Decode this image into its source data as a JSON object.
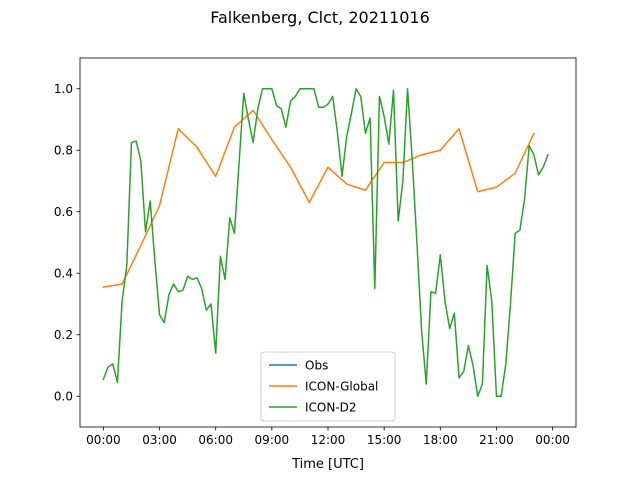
{
  "chart_data": {
    "type": "line",
    "title": "Falkenberg, Clct, 20211016",
    "xlabel": "Time [UTC]",
    "ylabel": "",
    "x_unit": "hours",
    "xlim": [
      -1.25,
      25.25
    ],
    "ylim": [
      -0.1,
      1.1
    ],
    "xticks": [
      0,
      3,
      6,
      9,
      12,
      15,
      18,
      21,
      24
    ],
    "xtick_labels": [
      "00:00",
      "03:00",
      "06:00",
      "09:00",
      "12:00",
      "15:00",
      "18:00",
      "21:00",
      "00:00"
    ],
    "yticks": [
      0.0,
      0.2,
      0.4,
      0.6,
      0.8,
      1.0
    ],
    "ytick_labels": [
      "0.0",
      "0.2",
      "0.4",
      "0.6",
      "0.8",
      "1.0"
    ],
    "grid": false,
    "legend_position": "lower-center",
    "colors": {
      "Obs": "#1f77b4",
      "ICON-Global": "#ff7f0e",
      "ICON-D2": "#2ca02c"
    },
    "series": [
      {
        "name": "Obs",
        "x": [],
        "y": []
      },
      {
        "name": "ICON-Global",
        "x": [
          0.0,
          1.0,
          2.0,
          3.0,
          4.0,
          5.0,
          6.0,
          7.0,
          8.0,
          9.0,
          10.0,
          11.0,
          12.0,
          13.0,
          14.0,
          15.0,
          16.0,
          17.0,
          18.0,
          19.0,
          20.0,
          21.0,
          22.0,
          23.0
        ],
        "y": [
          0.355,
          0.365,
          0.49,
          0.62,
          0.87,
          0.81,
          0.715,
          0.875,
          0.93,
          0.835,
          0.745,
          0.63,
          0.745,
          0.69,
          0.67,
          0.76,
          0.76,
          0.785,
          0.8,
          0.87,
          0.665,
          0.68,
          0.725,
          0.855
        ]
      },
      {
        "name": "ICON-D2",
        "x": [
          0.0,
          0.25,
          0.5,
          0.75,
          1.0,
          1.25,
          1.5,
          1.75,
          2.0,
          2.25,
          2.5,
          2.75,
          3.0,
          3.25,
          3.5,
          3.75,
          4.0,
          4.25,
          4.5,
          4.75,
          5.0,
          5.25,
          5.5,
          5.75,
          6.0,
          6.25,
          6.5,
          6.75,
          7.0,
          7.25,
          7.5,
          7.75,
          8.0,
          8.25,
          8.5,
          8.75,
          9.0,
          9.25,
          9.5,
          9.75,
          10.0,
          10.25,
          10.5,
          10.75,
          11.0,
          11.25,
          11.5,
          11.75,
          12.0,
          12.25,
          12.5,
          12.75,
          13.0,
          13.25,
          13.5,
          13.75,
          14.0,
          14.25,
          14.5,
          14.75,
          15.0,
          15.25,
          15.5,
          15.75,
          16.0,
          16.25,
          16.5,
          16.75,
          17.0,
          17.25,
          17.5,
          17.75,
          18.0,
          18.25,
          18.5,
          18.75,
          19.0,
          19.25,
          19.5,
          19.75,
          20.0,
          20.25,
          20.5,
          20.75,
          21.0,
          21.25,
          21.5,
          21.75,
          22.0,
          22.25,
          22.5,
          22.75,
          23.0,
          23.25,
          23.5,
          23.75
        ],
        "y": [
          0.055,
          0.095,
          0.105,
          0.045,
          0.31,
          0.425,
          0.825,
          0.83,
          0.765,
          0.535,
          0.635,
          0.44,
          0.265,
          0.24,
          0.33,
          0.365,
          0.34,
          0.345,
          0.39,
          0.38,
          0.385,
          0.35,
          0.28,
          0.3,
          0.14,
          0.455,
          0.38,
          0.58,
          0.53,
          0.76,
          0.985,
          0.9,
          0.825,
          0.935,
          1.0,
          1.0,
          1.0,
          0.945,
          0.935,
          0.875,
          0.96,
          0.975,
          1.0,
          1.0,
          1.0,
          1.0,
          0.94,
          0.94,
          0.95,
          0.975,
          0.86,
          0.715,
          0.845,
          0.92,
          1.0,
          0.975,
          0.855,
          0.905,
          0.35,
          0.975,
          0.91,
          0.82,
          0.995,
          0.57,
          0.7,
          1.0,
          0.77,
          0.5,
          0.215,
          0.04,
          0.34,
          0.335,
          0.46,
          0.31,
          0.22,
          0.27,
          0.06,
          0.08,
          0.165,
          0.1,
          0.0,
          0.04,
          0.425,
          0.31,
          0.0,
          0.0,
          0.105,
          0.3,
          0.53,
          0.54,
          0.64,
          0.815,
          0.785,
          0.72,
          0.745,
          0.785
        ]
      }
    ]
  }
}
